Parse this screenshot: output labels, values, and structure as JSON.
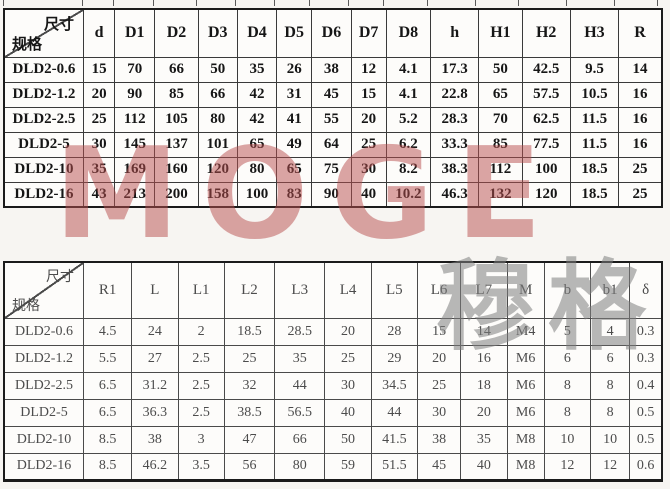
{
  "corner": {
    "top_label": "尺寸",
    "bottom_label": "规格"
  },
  "watermarks": {
    "logo_text": "MOGE",
    "logo_color": "#b84f4f",
    "cjk_text": "穆格",
    "cjk_color": "#7f7f7f"
  },
  "tables": [
    {
      "headers": [
        "d",
        "D1",
        "D2",
        "D3",
        "D4",
        "D5",
        "D6",
        "D7",
        "D8",
        "h",
        "H1",
        "H2",
        "H3",
        "R"
      ],
      "rows": [
        [
          "DLD2-0.6",
          "15",
          "70",
          "66",
          "50",
          "35",
          "26",
          "38",
          "12",
          "4.1",
          "17.3",
          "50",
          "42.5",
          "9.5",
          "14"
        ],
        [
          "DLD2-1.2",
          "20",
          "90",
          "85",
          "66",
          "42",
          "31",
          "45",
          "15",
          "4.1",
          "22.8",
          "65",
          "57.5",
          "10.5",
          "16"
        ],
        [
          "DLD2-2.5",
          "25",
          "112",
          "105",
          "80",
          "42",
          "41",
          "55",
          "20",
          "5.2",
          "28.3",
          "70",
          "62.5",
          "11.5",
          "16"
        ],
        [
          "DLD2-5",
          "30",
          "145",
          "137",
          "101",
          "65",
          "49",
          "64",
          "25",
          "6.2",
          "33.3",
          "85",
          "77.5",
          "11.5",
          "16"
        ],
        [
          "DLD2-10",
          "35",
          "169",
          "160",
          "120",
          "80",
          "65",
          "75",
          "30",
          "8.2",
          "38.3",
          "112",
          "100",
          "18.5",
          "25"
        ],
        [
          "DLD2-16",
          "43",
          "213",
          "200",
          "158",
          "100",
          "83",
          "90",
          "40",
          "10.2",
          "46.3",
          "132",
          "120",
          "18.5",
          "25"
        ]
      ]
    },
    {
      "headers": [
        "R1",
        "L",
        "L1",
        "L2",
        "L3",
        "L4",
        "L5",
        "L6",
        "L7",
        "M",
        "b",
        "b1",
        "δ"
      ],
      "rows": [
        [
          "DLD2-0.6",
          "4.5",
          "24",
          "2",
          "18.5",
          "28.5",
          "20",
          "28",
          "15",
          "14",
          "M4",
          "5",
          "4",
          "0.3"
        ],
        [
          "DLD2-1.2",
          "5.5",
          "27",
          "2.5",
          "25",
          "35",
          "25",
          "29",
          "20",
          "16",
          "M6",
          "6",
          "6",
          "0.3"
        ],
        [
          "DLD2-2.5",
          "6.5",
          "31.2",
          "2.5",
          "32",
          "44",
          "30",
          "34.5",
          "25",
          "18",
          "M6",
          "8",
          "8",
          "0.4"
        ],
        [
          "DLD2-5",
          "6.5",
          "36.3",
          "2.5",
          "38.5",
          "56.5",
          "40",
          "44",
          "30",
          "20",
          "M6",
          "8",
          "8",
          "0.5"
        ],
        [
          "DLD2-10",
          "8.5",
          "38",
          "3",
          "47",
          "66",
          "50",
          "41.5",
          "38",
          "35",
          "M8",
          "10",
          "10",
          "0.5"
        ],
        [
          "DLD2-16",
          "8.5",
          "46.2",
          "3.5",
          "56",
          "80",
          "59",
          "51.5",
          "45",
          "40",
          "M8",
          "12",
          "12",
          "0.6"
        ]
      ]
    }
  ]
}
